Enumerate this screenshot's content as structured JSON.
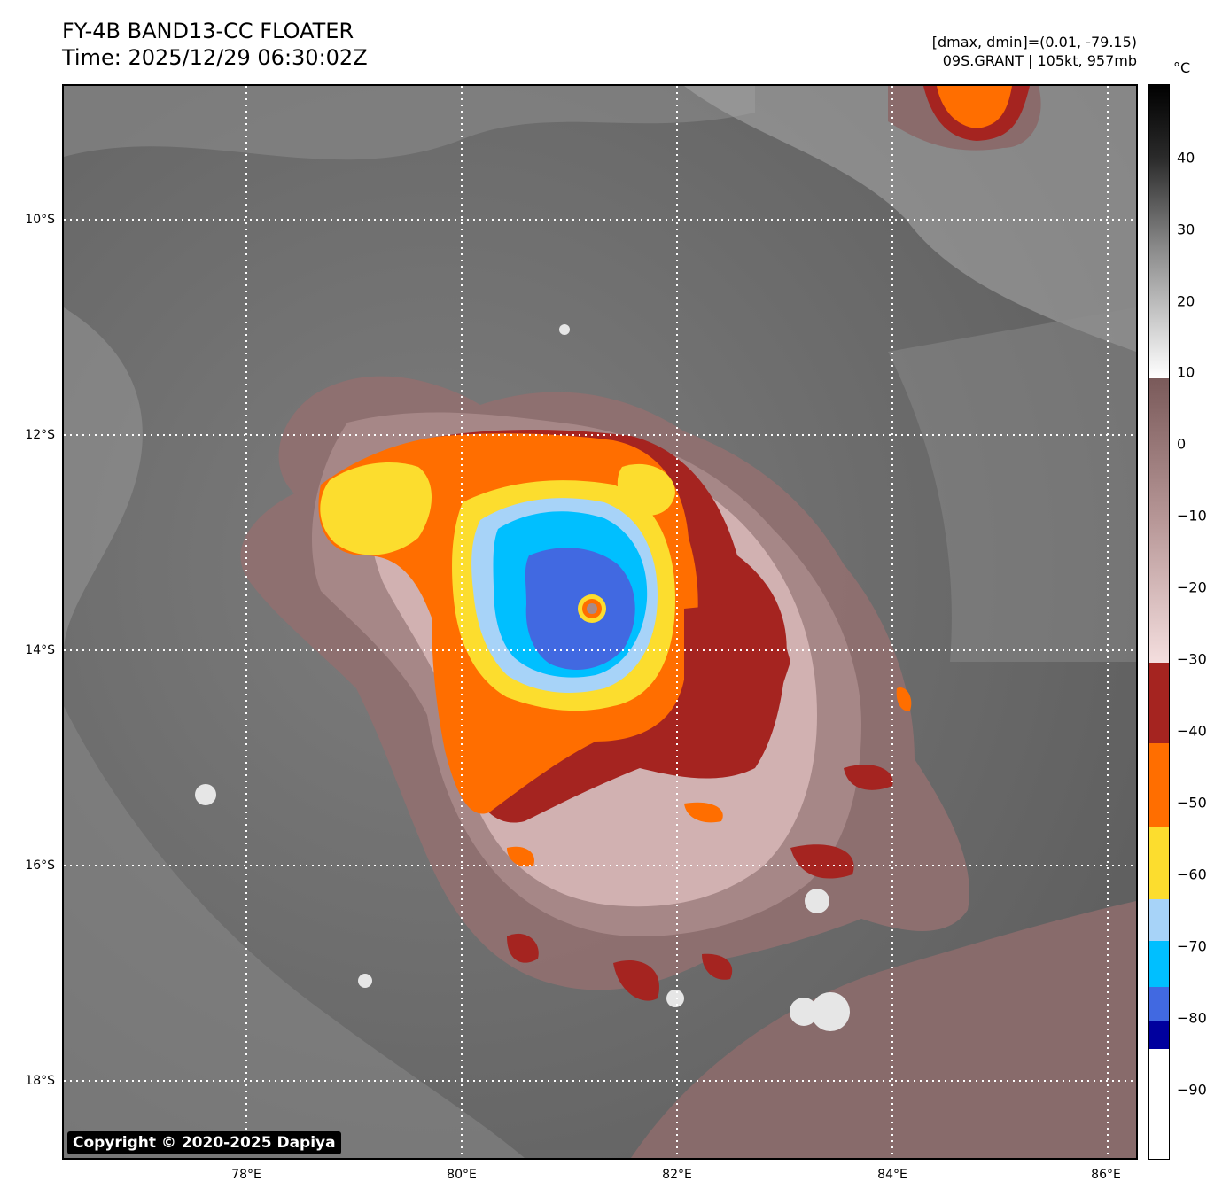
{
  "header": {
    "title": "FY-4B BAND13-CC FLOATER",
    "time": "Time: 2025/12/29 06:30:02Z",
    "dmax_dmin": "[dmax, dmin]=(0.01, -79.15)",
    "storm": "09S.GRANT | 105kt, 957mb"
  },
  "map": {
    "copyright": "Copyright © 2020-2025 Dapiya",
    "lat_labels": [
      "10°S",
      "12°S",
      "14°S",
      "16°S",
      "18°S"
    ],
    "lon_labels": [
      "78°E",
      "80°E",
      "82°E",
      "84°E",
      "86°E"
    ],
    "grid": "dotted white"
  },
  "colorbar": {
    "unit": "°C",
    "ticks": [
      "40",
      "30",
      "20",
      "10",
      "0",
      "−10",
      "−20",
      "−30",
      "−40",
      "−50",
      "−60",
      "−70",
      "−80",
      "−90"
    ],
    "colors": {
      "warm_gray_top": "#000000",
      "warm_gray_bottom": "#ffffff",
      "brown_top": "#7a5a5a",
      "brown_bottom": "#f4dede",
      "dark_red": "#a52420",
      "orange": "#ff6e00",
      "yellow": "#fcdd2e",
      "light_blue": "#a7d3f8",
      "cyan": "#00bfff",
      "royal_blue": "#4169e1",
      "navy": "#00009e",
      "white": "#ffffff"
    }
  }
}
